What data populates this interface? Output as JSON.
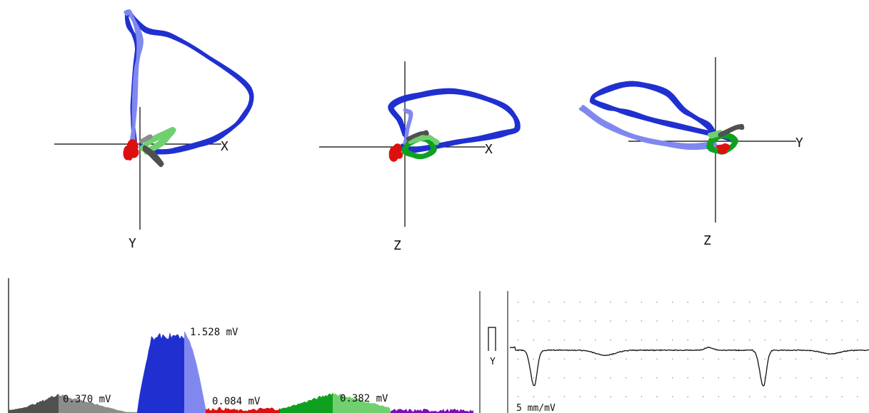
{
  "colors": {
    "loop_light_blue": "#8088f0",
    "loop_blue": "#2030d0",
    "p_wave_green_light": "#70d070",
    "p_wave_green": "#10a020",
    "qrs_onset_red": "#dd1010",
    "dark_gray": "#505050",
    "gray": "#8c8c8c",
    "violet": "#7a10b0",
    "axis": "#000000",
    "grid_dot": "#888888",
    "ecg_trace": "#111111"
  },
  "chart_data": [
    {
      "type": "vectorcardiogram-loop",
      "plane": "frontal",
      "horizontal_axis_label": "X",
      "vertical_axis_label": "Y"
    },
    {
      "type": "vectorcardiogram-loop",
      "plane": "horizontal",
      "horizontal_axis_label": "X",
      "vertical_axis_label": "Z"
    },
    {
      "type": "vectorcardiogram-loop",
      "plane": "sagittal",
      "horizontal_axis_label": "Y",
      "vertical_axis_label": "Z"
    },
    {
      "type": "area",
      "title": "",
      "annotations": [
        "0.370 mV",
        "1.528 mV",
        "0.084 mV",
        "0.382 mV"
      ],
      "segments": [
        {
          "label": "0.370 mV",
          "peak_mv": 0.37,
          "colors": [
            "dark_gray",
            "gray"
          ]
        },
        {
          "label": "1.528 mV",
          "peak_mv": 1.528,
          "colors": [
            "loop_blue",
            "loop_light_blue"
          ]
        },
        {
          "label": "0.084 mV",
          "peak_mv": 0.084,
          "colors": [
            "qrs_onset_red"
          ]
        },
        {
          "label": "0.382 mV",
          "peak_mv": 0.382,
          "colors": [
            "p_wave_green",
            "p_wave_green_light"
          ]
        },
        {
          "label": "",
          "peak_mv": 0.05,
          "colors": [
            "violet"
          ]
        }
      ]
    },
    {
      "type": "line",
      "lead": "Y",
      "scale_label": "5 mm/mV",
      "calibration_pulse": true,
      "grid": "dotted"
    }
  ]
}
